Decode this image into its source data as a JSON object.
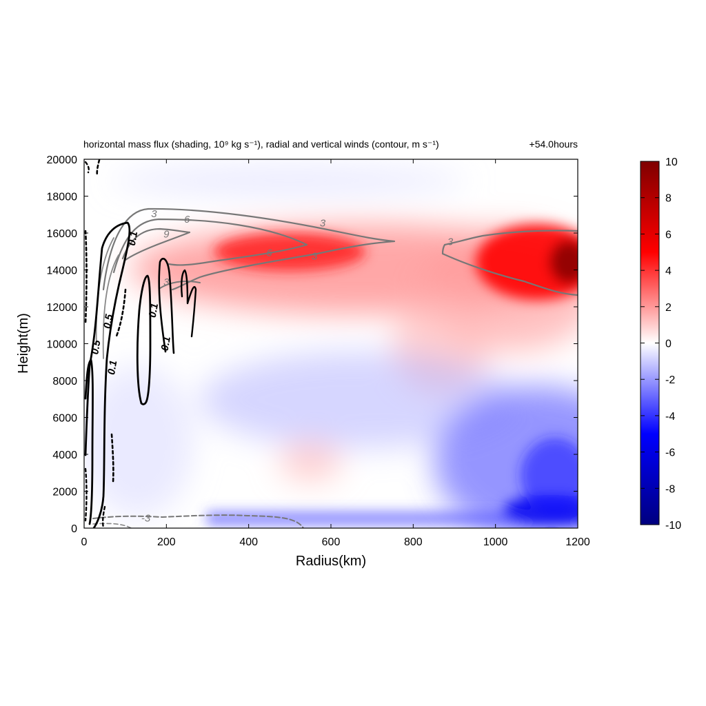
{
  "chart_data": {
    "type": "heatmap",
    "title": "horizontal mass flux (shading, 10⁹ kg s⁻¹), radial and vertical winds (contour, m s⁻¹)",
    "time_label": "+54.0hours",
    "xlabel": "Radius(km)",
    "ylabel": "Height(m)",
    "xlim": [
      0,
      1200
    ],
    "ylim": [
      0,
      20000
    ],
    "x_ticks": [
      "0",
      "200",
      "400",
      "600",
      "800",
      "1000",
      "1200"
    ],
    "y_ticks": [
      "0",
      "2000",
      "4000",
      "6000",
      "8000",
      "10000",
      "12000",
      "14000",
      "16000",
      "18000",
      "20000"
    ],
    "colorbar": {
      "min": -10,
      "max": 10,
      "ticks": [
        "10",
        "8",
        "6",
        "4",
        "2",
        "0",
        "-2",
        "-4",
        "-6",
        "-8",
        "-10"
      ],
      "colors": [
        "#00007f",
        "#0000ff",
        "#ffffff",
        "#ff0000",
        "#7f0000"
      ]
    },
    "shading_features": [
      {
        "name": "upper outflow core",
        "r": 480,
        "z": 15200,
        "value": 5.5
      },
      {
        "name": "outer outflow maximum",
        "r": 1180,
        "z": 14200,
        "value": 9.5
      },
      {
        "name": "mid-level inflow",
        "r": 600,
        "z": 7000,
        "value": -2
      },
      {
        "name": "lower outer inflow",
        "r": 1150,
        "z": 2500,
        "value": -7
      },
      {
        "name": "boundary layer inflow",
        "r": 1150,
        "z": 300,
        "value": -8
      }
    ],
    "contour_labels": [
      {
        "text": "3",
        "r": 170,
        "z": 17000,
        "color": "#777777"
      },
      {
        "text": "6",
        "r": 250,
        "z": 16700,
        "color": "#777777"
      },
      {
        "text": "9",
        "r": 200,
        "z": 15900,
        "color": "#777777"
      },
      {
        "text": "3",
        "r": 580,
        "z": 16500,
        "color": "#777777"
      },
      {
        "text": "6",
        "r": 450,
        "z": 14900,
        "color": "#777777"
      },
      {
        "text": "3",
        "r": 560,
        "z": 14700,
        "color": "#777777"
      },
      {
        "text": "3",
        "r": 890,
        "z": 15500,
        "color": "#777777"
      },
      {
        "text": "3",
        "r": 200,
        "z": 13300,
        "color": "#777777"
      },
      {
        "text": "0.1",
        "r": 120,
        "z": 15700,
        "color": "#000000"
      },
      {
        "text": "0.1",
        "r": 170,
        "z": 11800,
        "color": "#000000"
      },
      {
        "text": "0.1",
        "r": 200,
        "z": 10000,
        "color": "#000000"
      },
      {
        "text": "0.5",
        "r": 30,
        "z": 9800,
        "color": "#000000"
      },
      {
        "text": "0.1",
        "r": 70,
        "z": 8700,
        "color": "#000000"
      },
      {
        "text": "0.5",
        "r": 60,
        "z": 11200,
        "color": "#000000"
      },
      {
        "text": "-3",
        "r": 150,
        "z": 500,
        "color": "#777777"
      }
    ]
  }
}
